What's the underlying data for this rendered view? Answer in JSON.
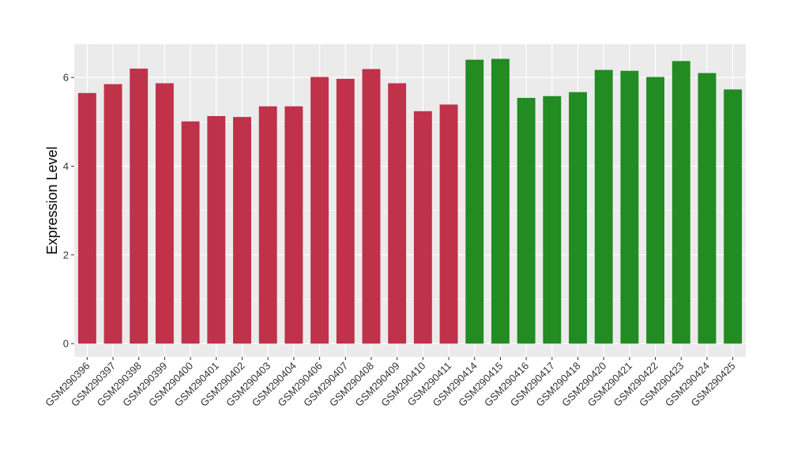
{
  "chart_data": {
    "type": "bar",
    "title": "",
    "xlabel": "",
    "ylabel": "Expression Level",
    "ylim": [
      -0.3,
      6.75
    ],
    "yticks": [
      0,
      2,
      4,
      6
    ],
    "grid": true,
    "legend": "none",
    "categories": [
      "GSM290396",
      "GSM290397",
      "GSM290398",
      "GSM290399",
      "GSM290400",
      "GSM290401",
      "GSM290402",
      "GSM290403",
      "GSM290404",
      "GSM290406",
      "GSM290407",
      "GSM290408",
      "GSM290409",
      "GSM290410",
      "GSM290411",
      "GSM290414",
      "GSM290415",
      "GSM290416",
      "GSM290417",
      "GSM290418",
      "GSM290420",
      "GSM290421",
      "GSM290422",
      "GSM290423",
      "GSM290424",
      "GSM290425"
    ],
    "values": [
      5.65,
      5.85,
      6.2,
      5.87,
      5.01,
      5.13,
      5.11,
      5.35,
      5.35,
      6.01,
      5.97,
      6.19,
      5.87,
      5.24,
      5.39,
      6.4,
      6.42,
      5.54,
      5.58,
      5.67,
      6.17,
      6.15,
      6.01,
      6.37,
      6.1,
      5.73
    ],
    "groups": [
      "a",
      "a",
      "a",
      "a",
      "a",
      "a",
      "a",
      "a",
      "a",
      "a",
      "a",
      "a",
      "a",
      "a",
      "a",
      "b",
      "b",
      "b",
      "b",
      "b",
      "b",
      "b",
      "b",
      "b",
      "b",
      "b"
    ],
    "group_colors": {
      "a": "#c0314a",
      "b": "#228b22"
    },
    "panel_background": "#ebebeb",
    "grid_color": "#ffffff"
  }
}
